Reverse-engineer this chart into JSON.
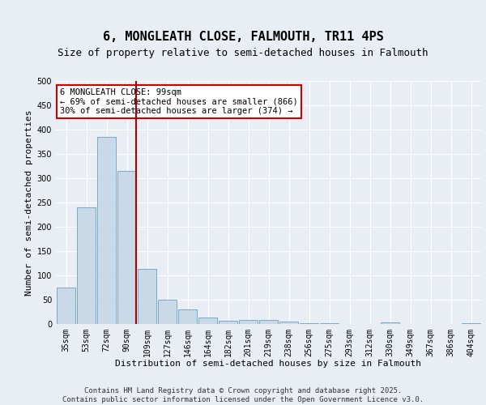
{
  "title_line1": "6, MONGLEATH CLOSE, FALMOUTH, TR11 4PS",
  "title_line2": "Size of property relative to semi-detached houses in Falmouth",
  "xlabel": "Distribution of semi-detached houses by size in Falmouth",
  "ylabel": "Number of semi-detached properties",
  "categories": [
    "35sqm",
    "53sqm",
    "72sqm",
    "90sqm",
    "109sqm",
    "127sqm",
    "146sqm",
    "164sqm",
    "182sqm",
    "201sqm",
    "219sqm",
    "238sqm",
    "256sqm",
    "275sqm",
    "293sqm",
    "312sqm",
    "330sqm",
    "349sqm",
    "367sqm",
    "386sqm",
    "404sqm"
  ],
  "values": [
    75,
    240,
    385,
    315,
    113,
    50,
    30,
    14,
    6,
    8,
    8,
    5,
    2,
    1,
    0,
    0,
    3,
    0,
    0,
    0,
    2
  ],
  "bar_color": "#c9d9e8",
  "bar_edge_color": "#7aaac8",
  "vline_pos": 3.45,
  "vline_color": "#aa0000",
  "annotation_text": "6 MONGLEATH CLOSE: 99sqm\n← 69% of semi-detached houses are smaller (866)\n30% of semi-detached houses are larger (374) →",
  "annotation_box_facecolor": "#ffffff",
  "annotation_box_edgecolor": "#cc0000",
  "ylim": [
    0,
    500
  ],
  "yticks": [
    0,
    50,
    100,
    150,
    200,
    250,
    300,
    350,
    400,
    450,
    500
  ],
  "background_color": "#e8eef4",
  "grid_color": "#ffffff",
  "footer_text": "Contains HM Land Registry data © Crown copyright and database right 2025.\nContains public sector information licensed under the Open Government Licence v3.0.",
  "title_fontsize": 11,
  "subtitle_fontsize": 9,
  "axis_label_fontsize": 8,
  "tick_fontsize": 7,
  "annotation_fontsize": 7.5,
  "footer_fontsize": 6.5
}
